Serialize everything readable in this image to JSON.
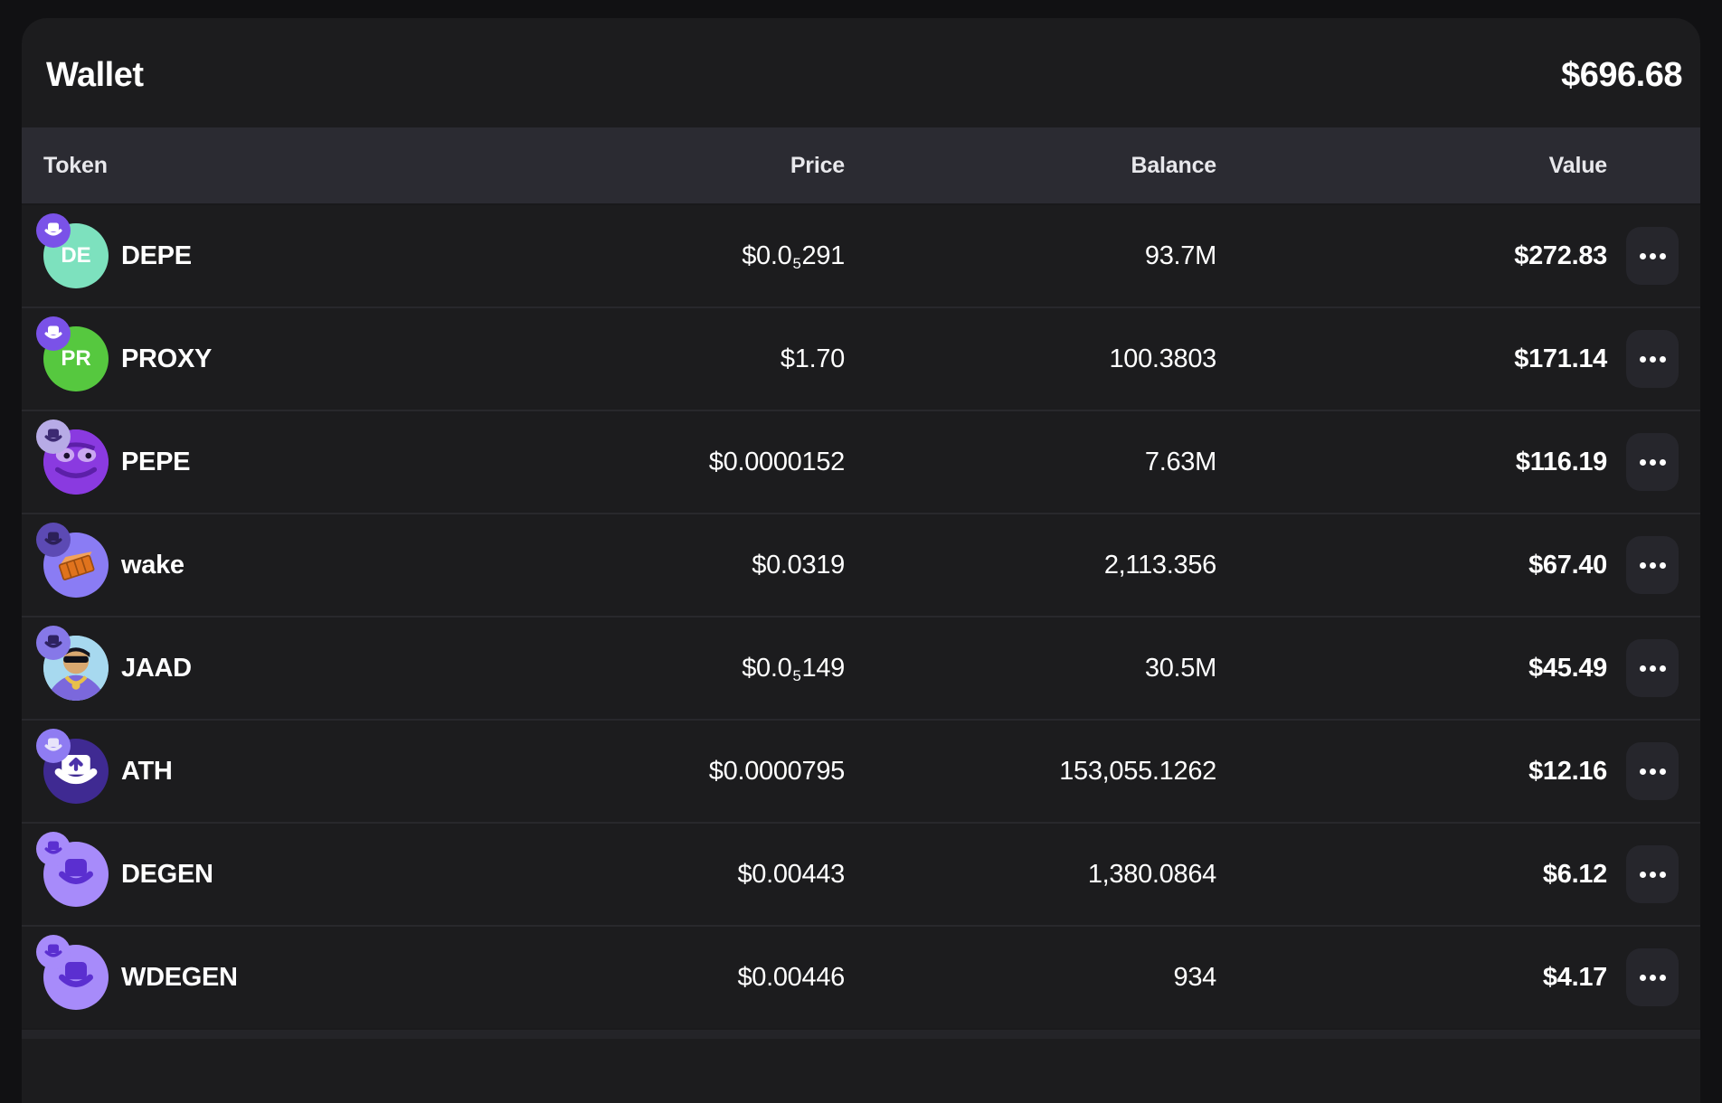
{
  "wallet": {
    "title": "Wallet",
    "total_value": "$696.68"
  },
  "table": {
    "columns": {
      "token": "Token",
      "price": "Price",
      "balance": "Balance",
      "value": "Value"
    },
    "rows": [
      {
        "symbol": "DEPE",
        "price": {
          "text": "$0.0",
          "sub": "5",
          "rest": "291"
        },
        "balance": "93.7M",
        "value": "$272.83",
        "icon": {
          "kind": "letters",
          "bg": "#7de1be",
          "fg": "#ffffff",
          "letters": "DE"
        },
        "badge": {
          "bg": "#7a52e8",
          "hat": "#ffffff"
        }
      },
      {
        "symbol": "PROXY",
        "price": {
          "text": "$1.70"
        },
        "balance": "100.3803",
        "value": "$171.14",
        "icon": {
          "kind": "letters",
          "bg": "#56c83f",
          "fg": "#ffffff",
          "letters": "PR"
        },
        "badge": {
          "bg": "#7a52e8",
          "hat": "#ffffff"
        }
      },
      {
        "symbol": "PEPE",
        "price": {
          "text": "$0.0000152"
        },
        "balance": "7.63M",
        "value": "$116.19",
        "icon": {
          "kind": "pepe",
          "bg": "#8a3ae0"
        },
        "badge": {
          "bg": "#b7abe6",
          "hat": "#3c2a72"
        }
      },
      {
        "symbol": "wake",
        "price": {
          "text": "$0.0319"
        },
        "balance": "2,113.356",
        "value": "$67.40",
        "icon": {
          "kind": "brick",
          "bg": "#8a7cf4"
        },
        "badge": {
          "bg": "#5c4ab4",
          "hat": "#2c2058"
        }
      },
      {
        "symbol": "JAAD",
        "price": {
          "text": "$0.0",
          "sub": "5",
          "rest": "149"
        },
        "balance": "30.5M",
        "value": "$45.49",
        "icon": {
          "kind": "avatar",
          "bg": "#a7d9ef"
        },
        "badge": {
          "bg": "#8678e8",
          "hat": "#2e2262"
        }
      },
      {
        "symbol": "ATH",
        "price": {
          "text": "$0.0000795"
        },
        "balance": "153,055.1262",
        "value": "$12.16",
        "icon": {
          "kind": "ath",
          "bg": "#3f2a92"
        },
        "badge": {
          "bg": "#8f7cf2",
          "hat": "#e8e4fa"
        }
      },
      {
        "symbol": "DEGEN",
        "price": {
          "text": "$0.00443"
        },
        "balance": "1,380.0864",
        "value": "$6.12",
        "icon": {
          "kind": "hat",
          "bg": "#a78bfa",
          "fg": "#5b2fd0"
        },
        "badge": {
          "bg": "#a78bfa",
          "hat": "#5b2fd0"
        }
      },
      {
        "symbol": "WDEGEN",
        "price": {
          "text": "$0.00446"
        },
        "balance": "934",
        "value": "$4.17",
        "icon": {
          "kind": "hat",
          "bg": "#a78bfa",
          "fg": "#5b2fd0"
        },
        "badge": {
          "bg": "#a78bfa",
          "hat": "#5b2fd0"
        }
      }
    ]
  },
  "theme": {
    "page_bg": "#111113",
    "card_bg": "#1c1c1e",
    "band_bg": "#2b2b32",
    "divider": "#28282c",
    "button_bg": "#26262c",
    "text": "#ffffff",
    "band_text": "#e8e8ec"
  }
}
